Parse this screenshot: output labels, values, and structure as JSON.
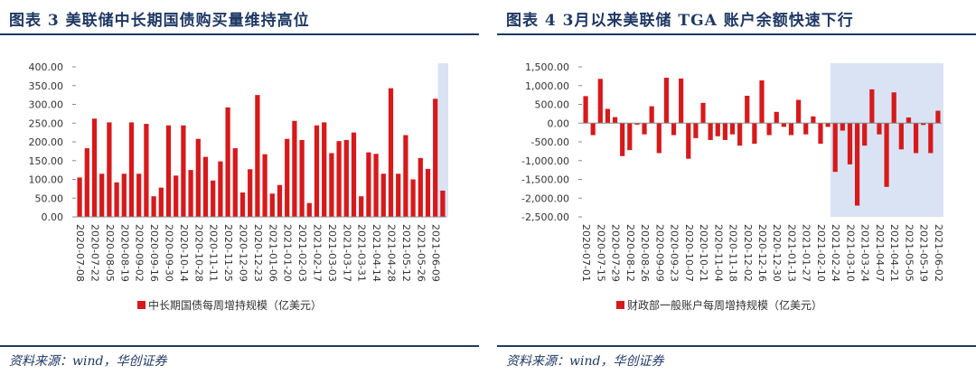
{
  "charts": [
    {
      "figure_title": "图表 3   美联储中长期国债购买量维持高位",
      "source": "资料来源：wind，华创证券",
      "chart_data": {
        "type": "bar",
        "series_name": "中长期国债每周增持规模（亿美元）",
        "bar_color": "#d7191c",
        "highlight_color": "#dae3f3",
        "highlight_last_n": 1,
        "ylim": [
          0,
          400
        ],
        "yticks": [
          0,
          50,
          100,
          150,
          200,
          250,
          300,
          350,
          400
        ],
        "ytick_labels": [
          "0.00",
          "50.00",
          "100.00",
          "150.00",
          "200.00",
          "250.00",
          "300.00",
          "350.00",
          "400.00"
        ],
        "tick_labels": [
          "2020-07-08",
          "2020-07-22",
          "2020-08-05",
          "2020-08-19",
          "2020-09-02",
          "2020-09-16",
          "2020-09-30",
          "2020-10-14",
          "2020-10-28",
          "2020-11-11",
          "2020-11-25",
          "2020-12-09",
          "2020-12-23",
          "2021-01-06",
          "2021-01-20",
          "2021-02-03",
          "2021-02-17",
          "2021-03-03",
          "2021-03-17",
          "2021-03-31",
          "2021-04-14",
          "2021-04-28",
          "2021-05-12",
          "2021-05-26",
          "2021-06-09"
        ],
        "values": [
          105,
          183,
          262,
          115,
          252,
          92,
          115,
          252,
          115,
          248,
          55,
          78,
          244,
          110,
          244,
          125,
          208,
          160,
          97,
          148,
          292,
          183,
          65,
          127,
          325,
          167,
          62,
          85,
          208,
          256,
          205,
          37,
          244,
          252,
          170,
          202,
          205,
          225,
          55,
          172,
          168,
          115,
          343,
          115,
          218,
          100,
          157,
          128,
          315,
          70
        ]
      }
    },
    {
      "figure_title": "图表 4   3月以来美联储 TGA 账户余额快速下行",
      "source": "资料来源：wind，华创证券",
      "chart_data": {
        "type": "bar",
        "series_name": "财政部一般账户每周增持规模（亿美元）",
        "bar_color": "#d7191c",
        "highlight_color": "#dae3f3",
        "highlight_from_index": 34,
        "ylim": [
          -2500,
          1500
        ],
        "yticks": [
          -2500,
          -2000,
          -1500,
          -1000,
          -500,
          0,
          500,
          1000,
          1500
        ],
        "ytick_labels": [
          "-2,500.00",
          "-2,000.00",
          "-1,500.00",
          "-1,000.00",
          "-500.00",
          "0.00",
          "500.00",
          "1,000.00",
          "1,500.00"
        ],
        "tick_labels": [
          "2020-07-01",
          "2020-07-15",
          "2020-07-29",
          "2020-08-12",
          "2020-08-26",
          "2020-09-09",
          "2020-09-23",
          "2020-10-07",
          "2020-10-21",
          "2020-11-04",
          "2020-11-18",
          "2020-12-02",
          "2020-12-16",
          "2020-12-30",
          "2021-01-13",
          "2021-01-27",
          "2021-02-10",
          "2021-02-24",
          "2021-03-10",
          "2021-03-24",
          "2021-04-07",
          "2021-04-21",
          "2021-05-05",
          "2021-05-19",
          "2021-06-02"
        ],
        "values": [
          720,
          -320,
          1180,
          380,
          160,
          -880,
          -720,
          -40,
          -300,
          450,
          -800,
          1210,
          -320,
          1190,
          -950,
          -400,
          540,
          -450,
          -350,
          -450,
          -300,
          -600,
          730,
          -550,
          1140,
          -320,
          300,
          -100,
          -320,
          620,
          -300,
          180,
          -550,
          -100,
          -1300,
          -200,
          -1100,
          -2200,
          -600,
          900,
          -300,
          -1700,
          820,
          -700,
          150,
          -800,
          -50,
          -800,
          330
        ]
      }
    }
  ]
}
